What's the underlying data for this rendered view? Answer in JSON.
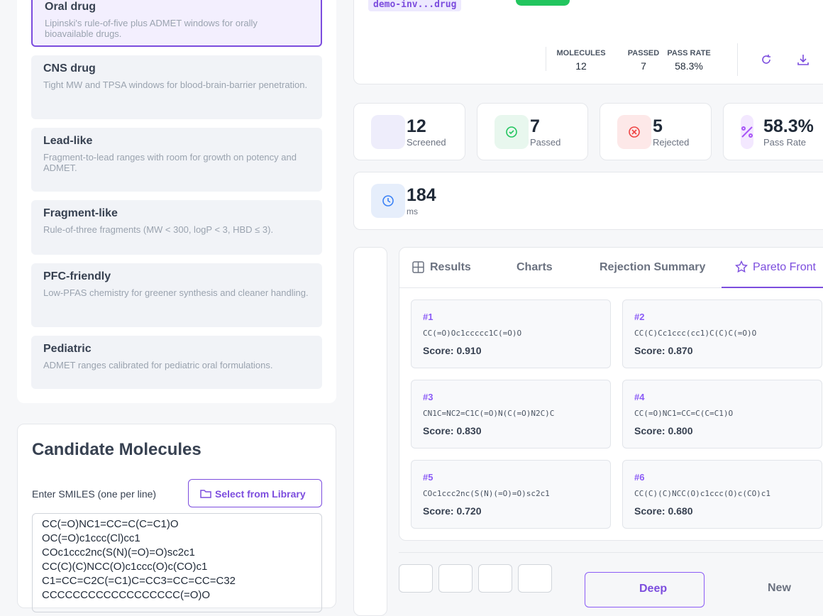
{
  "run_tag": "demo-inv...drug",
  "profiles": [
    {
      "name": "Oral drug",
      "description": "Lipinski's rule-of-five plus ADMET windows for orally bioavailable drugs.",
      "selected": true
    },
    {
      "name": "CNS drug",
      "description": "Tight MW and TPSA windows for blood-brain-barrier penetration.",
      "selected": false
    },
    {
      "name": "Lead-like",
      "description": "Fragment-to-lead ranges with room for growth on potency and ADMET.",
      "selected": false
    },
    {
      "name": "Fragment-like",
      "description": "Rule-of-three fragments (MW < 300, logP < 3, HBD ≤ 3).",
      "selected": false
    },
    {
      "name": "PFC-friendly",
      "description": "Low-PFAS chemistry for greener synthesis and cleaner handling.",
      "selected": false
    },
    {
      "name": "Pediatric",
      "description": "ADMET ranges calibrated for pediatric oral formulations.",
      "selected": false
    }
  ],
  "candidates": {
    "title": "Candidate Molecules",
    "input_label": "Enter SMILES (one per line)",
    "library_button": "Select from Library",
    "smiles": [
      "CC(=O)NC1=CC=C(C=C1)O",
      "OC(=O)c1ccc(Cl)cc1",
      "COc1ccc2nc(S(N)(=O)=O)sc2c1",
      "CC(C)(C)NCC(O)c1ccc(O)c(CO)c1",
      "C1=CC=C2C(=C1)C=CC3=CC=CC=C32",
      "CCCCCCCCCCCCCCCCCC(=O)O"
    ]
  },
  "summary": [
    {
      "label": "MOLECULES",
      "value": "12"
    },
    {
      "label": "PASSED",
      "value": "7"
    },
    {
      "label": "PASS RATE",
      "value": "58.3%"
    }
  ],
  "stat_cards": [
    {
      "value": "12",
      "label": "Screened"
    },
    {
      "value": "7",
      "label": "Passed"
    },
    {
      "value": "5",
      "label": "Rejected"
    },
    {
      "value": "58.3%",
      "label": "Pass Rate"
    },
    {
      "value": "184",
      "label": "ms"
    }
  ],
  "tabs": [
    {
      "label": "Results",
      "active": false
    },
    {
      "label": "Charts",
      "active": false
    },
    {
      "label": "Rejection Summary",
      "active": false
    },
    {
      "label": "Pareto Front",
      "active": true
    }
  ],
  "pareto": [
    {
      "rank": "#1",
      "smiles": "CC(=O)Oc1ccccc1C(=O)O",
      "score": "Score: 0.910"
    },
    {
      "rank": "#2",
      "smiles": "CC(C)Cc1ccc(cc1)C(C)C(=O)O",
      "score": "Score: 0.870"
    },
    {
      "rank": "#3",
      "smiles": "CN1C=NC2=C1C(=O)N(C(=O)N2C)C",
      "score": "Score: 0.830"
    },
    {
      "rank": "#4",
      "smiles": "CC(=O)NC1=CC=C(C=C1)O",
      "score": "Score: 0.800"
    },
    {
      "rank": "#5",
      "smiles": "COc1ccc2nc(S(N)(=O)=O)sc2c1",
      "score": "Score: 0.720"
    },
    {
      "rank": "#6",
      "smiles": "CC(C)(C)NCC(O)c1ccc(O)c(CO)c1",
      "score": "Score: 0.680"
    }
  ],
  "actions": [
    "Deep",
    "New"
  ]
}
